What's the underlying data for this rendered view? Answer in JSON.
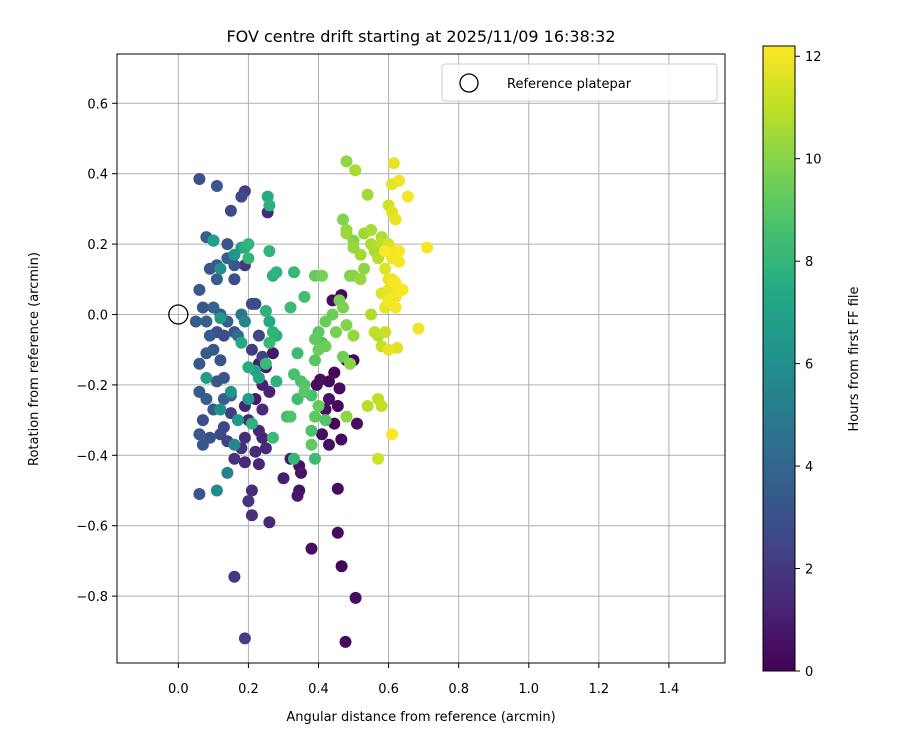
{
  "chart_data": {
    "type": "scatter",
    "title": "FOV centre drift starting at 2025/11/09 16:38:32",
    "xlabel": "Angular distance from reference (arcmin)",
    "ylabel": "Rotation from reference (arcmin)",
    "xlim": [
      -0.175,
      1.56
    ],
    "ylim": [
      -0.99,
      0.74
    ],
    "xticks": [
      0.0,
      0.2,
      0.4,
      0.6,
      0.8,
      1.0,
      1.2,
      1.4
    ],
    "xtick_labels": [
      "0.0",
      "0.2",
      "0.4",
      "0.6",
      "0.8",
      "1.0",
      "1.2",
      "1.4"
    ],
    "yticks": [
      0.6,
      0.4,
      0.2,
      0.0,
      -0.2,
      -0.4,
      -0.6,
      -0.8
    ],
    "ytick_labels": [
      "0.6",
      "0.4",
      "0.2",
      "0.0",
      "−0.2",
      "−0.4",
      "−0.6",
      "−0.8"
    ],
    "grid": true,
    "legend": {
      "location": "top-right",
      "entries": [
        {
          "label": "Reference platepar",
          "marker": "open-circle",
          "x": 0.0,
          "y": 0.0
        }
      ]
    },
    "colorbar": {
      "label": "Hours from first FF file",
      "range": [
        0,
        12.2
      ],
      "ticks": [
        0,
        2,
        4,
        6,
        8,
        10,
        12
      ],
      "tick_labels": [
        "0",
        "2",
        "4",
        "6",
        "8",
        "10",
        "12"
      ],
      "colormap": [
        "#440154",
        "#482475",
        "#414487",
        "#355f8d",
        "#2a788e",
        "#21918c",
        "#22a884",
        "#44bf70",
        "#7ad151",
        "#bddf26",
        "#fde725"
      ]
    },
    "points": [
      {
        "x": 0.477,
        "y": -0.93,
        "h": 0.3
      },
      {
        "x": 0.506,
        "y": -0.805,
        "h": 0.4
      },
      {
        "x": 0.466,
        "y": -0.715,
        "h": 0.2
      },
      {
        "x": 0.38,
        "y": -0.665,
        "h": 0.5
      },
      {
        "x": 0.455,
        "y": -0.62,
        "h": 0.3
      },
      {
        "x": 0.455,
        "y": -0.495,
        "h": 0.4
      },
      {
        "x": 0.345,
        "y": -0.5,
        "h": 0.6
      },
      {
        "x": 0.34,
        "y": -0.515,
        "h": 0.8
      },
      {
        "x": 0.35,
        "y": -0.45,
        "h": 0.7
      },
      {
        "x": 0.3,
        "y": -0.465,
        "h": 1.0
      },
      {
        "x": 0.32,
        "y": -0.41,
        "h": 0.9
      },
      {
        "x": 0.345,
        "y": -0.43,
        "h": 0.6
      },
      {
        "x": 0.41,
        "y": -0.34,
        "h": 0.4
      },
      {
        "x": 0.43,
        "y": -0.37,
        "h": 0.5
      },
      {
        "x": 0.465,
        "y": -0.355,
        "h": 0.3
      },
      {
        "x": 0.445,
        "y": -0.31,
        "h": 0.2
      },
      {
        "x": 0.42,
        "y": -0.27,
        "h": 0.5
      },
      {
        "x": 0.43,
        "y": -0.24,
        "h": 0.6
      },
      {
        "x": 0.455,
        "y": -0.26,
        "h": 0.3
      },
      {
        "x": 0.395,
        "y": -0.2,
        "h": 0.4
      },
      {
        "x": 0.405,
        "y": -0.185,
        "h": 0.5
      },
      {
        "x": 0.43,
        "y": -0.19,
        "h": 0.3
      },
      {
        "x": 0.445,
        "y": -0.165,
        "h": 0.2
      },
      {
        "x": 0.46,
        "y": -0.21,
        "h": 0.4
      },
      {
        "x": 0.48,
        "y": -0.13,
        "h": 0.3
      },
      {
        "x": 0.5,
        "y": -0.13,
        "h": 0.2
      },
      {
        "x": 0.44,
        "y": 0.04,
        "h": 0.4
      },
      {
        "x": 0.465,
        "y": 0.055,
        "h": 0.2
      },
      {
        "x": 0.51,
        "y": -0.31,
        "h": 0.5
      },
      {
        "x": 0.27,
        "y": -0.11,
        "h": 0.8
      },
      {
        "x": 0.25,
        "y": -0.15,
        "h": 0.9
      },
      {
        "x": 0.23,
        "y": -0.14,
        "h": 1.0
      },
      {
        "x": 0.24,
        "y": -0.2,
        "h": 1.1
      },
      {
        "x": 0.26,
        "y": -0.22,
        "h": 1.2
      },
      {
        "x": 0.22,
        "y": -0.24,
        "h": 0.9
      },
      {
        "x": 0.19,
        "y": -0.26,
        "h": 1.3
      },
      {
        "x": 0.24,
        "y": -0.27,
        "h": 1.4
      },
      {
        "x": 0.2,
        "y": -0.3,
        "h": 1.5
      },
      {
        "x": 0.23,
        "y": -0.33,
        "h": 1.3
      },
      {
        "x": 0.19,
        "y": -0.35,
        "h": 1.6
      },
      {
        "x": 0.24,
        "y": -0.35,
        "h": 1.2
      },
      {
        "x": 0.25,
        "y": -0.38,
        "h": 1.4
      },
      {
        "x": 0.22,
        "y": -0.39,
        "h": 1.5
      },
      {
        "x": 0.18,
        "y": -0.38,
        "h": 1.7
      },
      {
        "x": 0.16,
        "y": -0.41,
        "h": 1.8
      },
      {
        "x": 0.19,
        "y": -0.42,
        "h": 1.4
      },
      {
        "x": 0.23,
        "y": -0.425,
        "h": 1.3
      },
      {
        "x": 0.21,
        "y": -0.5,
        "h": 1.6
      },
      {
        "x": 0.2,
        "y": -0.53,
        "h": 1.9
      },
      {
        "x": 0.21,
        "y": -0.57,
        "h": 1.7
      },
      {
        "x": 0.26,
        "y": -0.59,
        "h": 1.5
      },
      {
        "x": 0.16,
        "y": -0.745,
        "h": 2.0
      },
      {
        "x": 0.19,
        "y": -0.92,
        "h": 2.2
      },
      {
        "x": 0.15,
        "y": -0.28,
        "h": 2.2
      },
      {
        "x": 0.13,
        "y": -0.32,
        "h": 2.6
      },
      {
        "x": 0.14,
        "y": -0.36,
        "h": 2.4
      },
      {
        "x": 0.12,
        "y": -0.34,
        "h": 2.7
      },
      {
        "x": 0.09,
        "y": -0.35,
        "h": 3.0
      },
      {
        "x": 0.07,
        "y": -0.37,
        "h": 3.2
      },
      {
        "x": 0.06,
        "y": -0.34,
        "h": 3.3
      },
      {
        "x": 0.07,
        "y": -0.3,
        "h": 3.0
      },
      {
        "x": 0.1,
        "y": -0.27,
        "h": 3.4
      },
      {
        "x": 0.06,
        "y": -0.22,
        "h": 3.5
      },
      {
        "x": 0.08,
        "y": -0.24,
        "h": 3.6
      },
      {
        "x": 0.11,
        "y": -0.19,
        "h": 3.3
      },
      {
        "x": 0.13,
        "y": -0.18,
        "h": 3.2
      },
      {
        "x": 0.06,
        "y": -0.14,
        "h": 3.4
      },
      {
        "x": 0.08,
        "y": -0.11,
        "h": 3.5
      },
      {
        "x": 0.1,
        "y": -0.1,
        "h": 3.3
      },
      {
        "x": 0.12,
        "y": -0.13,
        "h": 3.1
      },
      {
        "x": 0.13,
        "y": -0.24,
        "h": 3.7
      },
      {
        "x": 0.15,
        "y": -0.23,
        "h": 3.8
      },
      {
        "x": 0.06,
        "y": -0.51,
        "h": 3.2
      },
      {
        "x": 0.05,
        "y": -0.02,
        "h": 3.6
      },
      {
        "x": 0.08,
        "y": -0.02,
        "h": 3.8
      },
      {
        "x": 0.07,
        "y": 0.02,
        "h": 3.3
      },
      {
        "x": 0.1,
        "y": 0.02,
        "h": 3.9
      },
      {
        "x": 0.12,
        "y": 0.0,
        "h": 3.4
      },
      {
        "x": 0.14,
        "y": -0.02,
        "h": 3.7
      },
      {
        "x": 0.09,
        "y": -0.06,
        "h": 3.5
      },
      {
        "x": 0.11,
        "y": -0.05,
        "h": 3.0
      },
      {
        "x": 0.13,
        "y": -0.06,
        "h": 2.9
      },
      {
        "x": 0.16,
        "y": -0.05,
        "h": 3.2
      },
      {
        "x": 0.06,
        "y": 0.07,
        "h": 3.4
      },
      {
        "x": 0.11,
        "y": 0.1,
        "h": 3.6
      },
      {
        "x": 0.09,
        "y": 0.13,
        "h": 3.2
      },
      {
        "x": 0.11,
        "y": 0.14,
        "h": 3.5
      },
      {
        "x": 0.14,
        "y": 0.16,
        "h": 3.7
      },
      {
        "x": 0.16,
        "y": 0.1,
        "h": 3.0
      },
      {
        "x": 0.16,
        "y": 0.14,
        "h": 3.3
      },
      {
        "x": 0.19,
        "y": 0.14,
        "h": 2.0
      },
      {
        "x": 0.08,
        "y": 0.22,
        "h": 3.6
      },
      {
        "x": 0.1,
        "y": 0.21,
        "h": 3.4
      },
      {
        "x": 0.14,
        "y": 0.2,
        "h": 3.2
      },
      {
        "x": 0.06,
        "y": 0.385,
        "h": 3.0
      },
      {
        "x": 0.11,
        "y": 0.365,
        "h": 3.3
      },
      {
        "x": 0.15,
        "y": 0.295,
        "h": 2.8
      },
      {
        "x": 0.18,
        "y": 0.335,
        "h": 2.6
      },
      {
        "x": 0.19,
        "y": 0.35,
        "h": 2.3
      },
      {
        "x": 0.255,
        "y": 0.29,
        "h": 1.5
      },
      {
        "x": 0.21,
        "y": 0.03,
        "h": 2.6
      },
      {
        "x": 0.22,
        "y": 0.03,
        "h": 2.8
      },
      {
        "x": 0.23,
        "y": -0.06,
        "h": 2.5
      },
      {
        "x": 0.24,
        "y": -0.12,
        "h": 2.3
      },
      {
        "x": 0.21,
        "y": -0.1,
        "h": 2.1
      },
      {
        "x": 0.17,
        "y": -0.06,
        "h": 4.5
      },
      {
        "x": 0.18,
        "y": 0.0,
        "h": 5.0
      },
      {
        "x": 0.19,
        "y": -0.02,
        "h": 5.5
      },
      {
        "x": 0.12,
        "y": 0.13,
        "h": 6.0
      },
      {
        "x": 0.16,
        "y": 0.17,
        "h": 6.4
      },
      {
        "x": 0.18,
        "y": 0.19,
        "h": 6.7
      },
      {
        "x": 0.1,
        "y": 0.21,
        "h": 6.9
      },
      {
        "x": 0.12,
        "y": -0.01,
        "h": 6.6
      },
      {
        "x": 0.08,
        "y": -0.18,
        "h": 6.8
      },
      {
        "x": 0.11,
        "y": -0.5,
        "h": 5.8
      },
      {
        "x": 0.14,
        "y": -0.45,
        "h": 5.3
      },
      {
        "x": 0.16,
        "y": -0.37,
        "h": 5.6
      },
      {
        "x": 0.12,
        "y": -0.27,
        "h": 6.1
      },
      {
        "x": 0.15,
        "y": -0.22,
        "h": 6.3
      },
      {
        "x": 0.17,
        "y": -0.3,
        "h": 6.5
      },
      {
        "x": 0.2,
        "y": -0.24,
        "h": 6.7
      },
      {
        "x": 0.22,
        "y": -0.16,
        "h": 7.0
      },
      {
        "x": 0.23,
        "y": -0.18,
        "h": 7.2
      },
      {
        "x": 0.2,
        "y": -0.15,
        "h": 7.5
      },
      {
        "x": 0.21,
        "y": -0.31,
        "h": 7.8
      },
      {
        "x": 0.18,
        "y": -0.08,
        "h": 7.4
      },
      {
        "x": 0.2,
        "y": 0.16,
        "h": 8.0
      },
      {
        "x": 0.19,
        "y": 0.19,
        "h": 7.6
      },
      {
        "x": 0.2,
        "y": 0.2,
        "h": 7.9
      },
      {
        "x": 0.255,
        "y": 0.335,
        "h": 7.5
      },
      {
        "x": 0.26,
        "y": 0.31,
        "h": 7.7
      },
      {
        "x": 0.26,
        "y": 0.18,
        "h": 8.0
      },
      {
        "x": 0.27,
        "y": 0.11,
        "h": 7.6
      },
      {
        "x": 0.28,
        "y": 0.12,
        "h": 7.9
      },
      {
        "x": 0.25,
        "y": 0.01,
        "h": 7.8
      },
      {
        "x": 0.26,
        "y": -0.02,
        "h": 7.4
      },
      {
        "x": 0.27,
        "y": -0.05,
        "h": 7.9
      },
      {
        "x": 0.26,
        "y": -0.08,
        "h": 8.1
      },
      {
        "x": 0.28,
        "y": -0.06,
        "h": 7.6
      },
      {
        "x": 0.25,
        "y": -0.14,
        "h": 8.2
      },
      {
        "x": 0.28,
        "y": -0.19,
        "h": 7.8
      },
      {
        "x": 0.27,
        "y": -0.35,
        "h": 8.3
      },
      {
        "x": 0.31,
        "y": -0.29,
        "h": 8.4
      },
      {
        "x": 0.33,
        "y": -0.41,
        "h": 8.0
      },
      {
        "x": 0.33,
        "y": 0.12,
        "h": 8.1
      },
      {
        "x": 0.32,
        "y": 0.02,
        "h": 8.3
      },
      {
        "x": 0.36,
        "y": 0.05,
        "h": 8.5
      },
      {
        "x": 0.33,
        "y": -0.17,
        "h": 8.6
      },
      {
        "x": 0.34,
        "y": -0.11,
        "h": 8.2
      },
      {
        "x": 0.35,
        "y": -0.19,
        "h": 8.7
      },
      {
        "x": 0.34,
        "y": -0.24,
        "h": 8.4
      },
      {
        "x": 0.32,
        "y": -0.29,
        "h": 8.8
      },
      {
        "x": 0.36,
        "y": -0.2,
        "h": 8.9
      },
      {
        "x": 0.36,
        "y": -0.22,
        "h": 9.0
      },
      {
        "x": 0.38,
        "y": -0.23,
        "h": 8.6
      },
      {
        "x": 0.38,
        "y": -0.33,
        "h": 8.7
      },
      {
        "x": 0.38,
        "y": -0.37,
        "h": 9.2
      },
      {
        "x": 0.39,
        "y": -0.41,
        "h": 8.3
      },
      {
        "x": 0.39,
        "y": -0.29,
        "h": 9.1
      },
      {
        "x": 0.4,
        "y": -0.26,
        "h": 9.3
      },
      {
        "x": 0.42,
        "y": -0.3,
        "h": 8.9
      },
      {
        "x": 0.39,
        "y": -0.13,
        "h": 9.0
      },
      {
        "x": 0.4,
        "y": -0.1,
        "h": 9.4
      },
      {
        "x": 0.41,
        "y": -0.08,
        "h": 8.8
      },
      {
        "x": 0.39,
        "y": -0.07,
        "h": 9.2
      },
      {
        "x": 0.42,
        "y": -0.09,
        "h": 9.5
      },
      {
        "x": 0.4,
        "y": -0.05,
        "h": 9.1
      },
      {
        "x": 0.39,
        "y": 0.11,
        "h": 9.3
      },
      {
        "x": 0.41,
        "y": 0.11,
        "h": 9.6
      },
      {
        "x": 0.42,
        "y": -0.02,
        "h": 9.4
      },
      {
        "x": 0.45,
        "y": -0.05,
        "h": 9.7
      },
      {
        "x": 0.44,
        "y": 0.0,
        "h": 9.5
      },
      {
        "x": 0.47,
        "y": 0.02,
        "h": 9.8
      },
      {
        "x": 0.46,
        "y": 0.04,
        "h": 9.6
      },
      {
        "x": 0.48,
        "y": -0.03,
        "h": 9.9
      },
      {
        "x": 0.47,
        "y": -0.12,
        "h": 9.5
      },
      {
        "x": 0.49,
        "y": -0.14,
        "h": 10.0
      },
      {
        "x": 0.48,
        "y": -0.29,
        "h": 10.1
      },
      {
        "x": 0.5,
        "y": -0.06,
        "h": 10.2
      },
      {
        "x": 0.5,
        "y": 0.11,
        "h": 10.0
      },
      {
        "x": 0.49,
        "y": 0.11,
        "h": 9.8
      },
      {
        "x": 0.52,
        "y": 0.1,
        "h": 10.3
      },
      {
        "x": 0.53,
        "y": 0.13,
        "h": 10.1
      },
      {
        "x": 0.47,
        "y": 0.27,
        "h": 9.9
      },
      {
        "x": 0.48,
        "y": 0.24,
        "h": 10.2
      },
      {
        "x": 0.48,
        "y": 0.23,
        "h": 10.4
      },
      {
        "x": 0.5,
        "y": 0.21,
        "h": 10.0
      },
      {
        "x": 0.5,
        "y": 0.19,
        "h": 10.3
      },
      {
        "x": 0.52,
        "y": 0.17,
        "h": 10.5
      },
      {
        "x": 0.53,
        "y": 0.23,
        "h": 10.4
      },
      {
        "x": 0.55,
        "y": 0.24,
        "h": 10.6
      },
      {
        "x": 0.55,
        "y": 0.2,
        "h": 10.7
      },
      {
        "x": 0.57,
        "y": 0.16,
        "h": 10.9
      },
      {
        "x": 0.58,
        "y": 0.22,
        "h": 10.8
      },
      {
        "x": 0.58,
        "y": 0.2,
        "h": 11.0
      },
      {
        "x": 0.56,
        "y": 0.18,
        "h": 10.6
      },
      {
        "x": 0.54,
        "y": 0.34,
        "h": 10.5
      },
      {
        "x": 0.48,
        "y": 0.435,
        "h": 10.2
      },
      {
        "x": 0.505,
        "y": 0.41,
        "h": 10.6
      },
      {
        "x": 0.55,
        "y": 0.0,
        "h": 10.8
      },
      {
        "x": 0.56,
        "y": -0.05,
        "h": 11.0
      },
      {
        "x": 0.57,
        "y": -0.06,
        "h": 10.7
      },
      {
        "x": 0.58,
        "y": -0.09,
        "h": 11.1
      },
      {
        "x": 0.59,
        "y": -0.05,
        "h": 11.2
      },
      {
        "x": 0.54,
        "y": -0.26,
        "h": 10.9
      },
      {
        "x": 0.57,
        "y": -0.24,
        "h": 11.0
      },
      {
        "x": 0.58,
        "y": -0.26,
        "h": 11.1
      },
      {
        "x": 0.57,
        "y": -0.41,
        "h": 11.3
      },
      {
        "x": 0.6,
        "y": 0.31,
        "h": 11.4
      },
      {
        "x": 0.61,
        "y": 0.29,
        "h": 11.6
      },
      {
        "x": 0.62,
        "y": 0.27,
        "h": 11.8
      },
      {
        "x": 0.61,
        "y": 0.37,
        "h": 11.7
      },
      {
        "x": 0.615,
        "y": 0.43,
        "h": 11.8
      },
      {
        "x": 0.63,
        "y": 0.38,
        "h": 11.9
      },
      {
        "x": 0.655,
        "y": 0.335,
        "h": 12.0
      },
      {
        "x": 0.6,
        "y": 0.2,
        "h": 11.5
      },
      {
        "x": 0.62,
        "y": 0.18,
        "h": 11.9
      },
      {
        "x": 0.61,
        "y": 0.16,
        "h": 12.0
      },
      {
        "x": 0.63,
        "y": 0.15,
        "h": 12.1
      },
      {
        "x": 0.59,
        "y": 0.13,
        "h": 11.6
      },
      {
        "x": 0.6,
        "y": 0.1,
        "h": 11.7
      },
      {
        "x": 0.61,
        "y": 0.1,
        "h": 11.9
      },
      {
        "x": 0.62,
        "y": 0.09,
        "h": 12.0
      },
      {
        "x": 0.6,
        "y": 0.07,
        "h": 11.8
      },
      {
        "x": 0.63,
        "y": 0.07,
        "h": 12.1
      },
      {
        "x": 0.62,
        "y": 0.05,
        "h": 11.9
      },
      {
        "x": 0.6,
        "y": 0.04,
        "h": 12.0
      },
      {
        "x": 0.58,
        "y": 0.06,
        "h": 11.6
      },
      {
        "x": 0.59,
        "y": 0.02,
        "h": 11.7
      },
      {
        "x": 0.62,
        "y": 0.02,
        "h": 12.0
      },
      {
        "x": 0.63,
        "y": 0.18,
        "h": 12.1
      },
      {
        "x": 0.59,
        "y": 0.18,
        "h": 12.2
      },
      {
        "x": 0.64,
        "y": 0.07,
        "h": 12.0
      },
      {
        "x": 0.6,
        "y": -0.1,
        "h": 11.8
      },
      {
        "x": 0.625,
        "y": -0.095,
        "h": 11.6
      },
      {
        "x": 0.685,
        "y": -0.04,
        "h": 11.9
      },
      {
        "x": 0.61,
        "y": -0.34,
        "h": 12.2
      },
      {
        "x": 0.71,
        "y": 0.19,
        "h": 12.0
      }
    ]
  }
}
